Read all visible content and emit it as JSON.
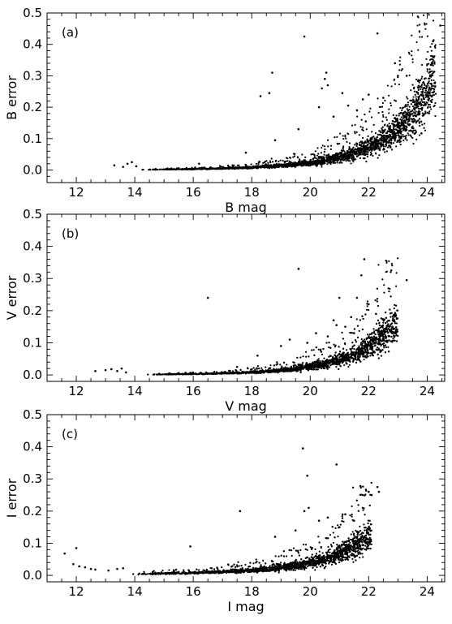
{
  "chart_data": [
    {
      "type": "scatter",
      "panel_label": "(a)",
      "xlabel": "B mag",
      "ylabel": "B error",
      "xlim": [
        11,
        24.6
      ],
      "ylim": [
        -0.04,
        0.5
      ],
      "xticks": [
        12,
        14,
        16,
        18,
        20,
        22,
        24
      ],
      "yticks": [
        0.0,
        0.1,
        0.2,
        0.3,
        0.4,
        0.5
      ],
      "xtick_labels": [
        "12",
        "14",
        "16",
        "18",
        "20",
        "22",
        "24"
      ],
      "ytick_labels": [
        "0.0",
        "0.1",
        "0.2",
        "0.3",
        "0.4",
        "0.5"
      ],
      "grid": false,
      "legend": "none",
      "point_color": "#000000",
      "trend_x": [
        14.2,
        15,
        16,
        17,
        18,
        19,
        20,
        20.5,
        21,
        21.5,
        22,
        22.3,
        22.6,
        22.9,
        23.2,
        23.5,
        23.8,
        24.1,
        24.3
      ],
      "trend_y": [
        0.001,
        0.002,
        0.003,
        0.005,
        0.008,
        0.014,
        0.023,
        0.031,
        0.041,
        0.055,
        0.073,
        0.088,
        0.104,
        0.123,
        0.146,
        0.175,
        0.215,
        0.27,
        0.34
      ],
      "outliers": [
        {
          "x": 13.3,
          "y": 0.015
        },
        {
          "x": 13.6,
          "y": 0.01
        },
        {
          "x": 13.75,
          "y": 0.02
        },
        {
          "x": 13.9,
          "y": 0.025
        },
        {
          "x": 14.05,
          "y": 0.012
        },
        {
          "x": 16.2,
          "y": 0.02
        },
        {
          "x": 17.8,
          "y": 0.055
        },
        {
          "x": 18.3,
          "y": 0.235
        },
        {
          "x": 18.6,
          "y": 0.245
        },
        {
          "x": 18.7,
          "y": 0.31
        },
        {
          "x": 18.8,
          "y": 0.095
        },
        {
          "x": 19.6,
          "y": 0.13
        },
        {
          "x": 19.8,
          "y": 0.425
        },
        {
          "x": 20.3,
          "y": 0.2
        },
        {
          "x": 20.4,
          "y": 0.26
        },
        {
          "x": 20.5,
          "y": 0.29
        },
        {
          "x": 20.55,
          "y": 0.31
        },
        {
          "x": 20.6,
          "y": 0.27
        },
        {
          "x": 20.8,
          "y": 0.17
        },
        {
          "x": 21.1,
          "y": 0.245
        },
        {
          "x": 21.3,
          "y": 0.205
        },
        {
          "x": 21.6,
          "y": 0.19
        },
        {
          "x": 21.8,
          "y": 0.225
        },
        {
          "x": 21.9,
          "y": 0.155
        },
        {
          "x": 22.0,
          "y": 0.24
        },
        {
          "x": 22.3,
          "y": 0.435
        },
        {
          "x": 22.5,
          "y": 0.23
        },
        {
          "x": 22.9,
          "y": 0.34
        },
        {
          "x": 23.0,
          "y": 0.3
        },
        {
          "x": 23.3,
          "y": 0.3
        },
        {
          "x": 24.2,
          "y": 0.41
        },
        {
          "x": 24.45,
          "y": 0.46
        }
      ]
    },
    {
      "type": "scatter",
      "panel_label": "(b)",
      "xlabel": "V mag",
      "ylabel": "V error",
      "xlim": [
        11,
        24.6
      ],
      "ylim": [
        -0.02,
        0.5
      ],
      "xticks": [
        12,
        14,
        16,
        18,
        20,
        22,
        24
      ],
      "yticks": [
        0.0,
        0.1,
        0.2,
        0.3,
        0.4,
        0.5
      ],
      "xtick_labels": [
        "12",
        "14",
        "16",
        "18",
        "20",
        "22",
        "24"
      ],
      "ytick_labels": [
        "0.0",
        "0.1",
        "0.2",
        "0.3",
        "0.4",
        "0.5"
      ],
      "grid": false,
      "legend": "none",
      "point_color": "#000000",
      "trend_x": [
        14.4,
        15,
        16,
        17,
        18,
        18.5,
        19,
        19.5,
        20,
        20.5,
        21,
        21.5,
        21.8,
        22.1,
        22.4,
        22.7,
        23.0
      ],
      "trend_y": [
        0.001,
        0.002,
        0.003,
        0.005,
        0.008,
        0.011,
        0.015,
        0.02,
        0.027,
        0.036,
        0.048,
        0.065,
        0.078,
        0.095,
        0.115,
        0.14,
        0.17
      ],
      "outliers": [
        {
          "x": 12.65,
          "y": 0.012
        },
        {
          "x": 13.0,
          "y": 0.015
        },
        {
          "x": 13.2,
          "y": 0.018
        },
        {
          "x": 13.4,
          "y": 0.012
        },
        {
          "x": 13.55,
          "y": 0.02
        },
        {
          "x": 13.7,
          "y": 0.008
        },
        {
          "x": 16.5,
          "y": 0.24
        },
        {
          "x": 17.5,
          "y": 0.025
        },
        {
          "x": 18.2,
          "y": 0.06
        },
        {
          "x": 19.0,
          "y": 0.09
        },
        {
          "x": 19.3,
          "y": 0.11
        },
        {
          "x": 19.6,
          "y": 0.33
        },
        {
          "x": 19.9,
          "y": 0.1
        },
        {
          "x": 20.2,
          "y": 0.13
        },
        {
          "x": 20.6,
          "y": 0.12
        },
        {
          "x": 20.8,
          "y": 0.17
        },
        {
          "x": 20.9,
          "y": 0.155
        },
        {
          "x": 21.0,
          "y": 0.24
        },
        {
          "x": 21.2,
          "y": 0.15
        },
        {
          "x": 21.4,
          "y": 0.18
        },
        {
          "x": 21.5,
          "y": 0.13
        },
        {
          "x": 21.6,
          "y": 0.24
        },
        {
          "x": 21.75,
          "y": 0.31
        },
        {
          "x": 21.85,
          "y": 0.36
        },
        {
          "x": 22.0,
          "y": 0.22
        },
        {
          "x": 22.25,
          "y": 0.19
        },
        {
          "x": 23.3,
          "y": 0.295
        }
      ]
    },
    {
      "type": "scatter",
      "panel_label": "(c)",
      "xlabel": "I mag",
      "ylabel": "I error",
      "xlim": [
        11,
        24.6
      ],
      "ylim": [
        -0.02,
        0.5
      ],
      "xticks": [
        12,
        14,
        16,
        18,
        20,
        22,
        24
      ],
      "yticks": [
        0.0,
        0.1,
        0.2,
        0.3,
        0.4,
        0.5
      ],
      "xtick_labels": [
        "12",
        "14",
        "16",
        "18",
        "20",
        "22",
        "24"
      ],
      "ytick_labels": [
        "0.0",
        "0.1",
        "0.2",
        "0.3",
        "0.4",
        "0.5"
      ],
      "grid": false,
      "legend": "none",
      "point_color": "#000000",
      "trend_x": [
        13.9,
        14.5,
        15,
        16,
        17,
        18,
        18.5,
        19,
        19.5,
        20,
        20.5,
        21,
        21.3,
        21.6,
        21.9,
        22.1
      ],
      "trend_y": [
        0.004,
        0.005,
        0.006,
        0.008,
        0.011,
        0.016,
        0.02,
        0.025,
        0.031,
        0.04,
        0.052,
        0.068,
        0.08,
        0.095,
        0.115,
        0.135
      ],
      "outliers": [
        {
          "x": 11.6,
          "y": 0.068
        },
        {
          "x": 11.9,
          "y": 0.035
        },
        {
          "x": 12.0,
          "y": 0.085
        },
        {
          "x": 12.1,
          "y": 0.028
        },
        {
          "x": 12.3,
          "y": 0.025
        },
        {
          "x": 12.5,
          "y": 0.02
        },
        {
          "x": 12.65,
          "y": 0.018
        },
        {
          "x": 13.1,
          "y": 0.015
        },
        {
          "x": 13.4,
          "y": 0.02
        },
        {
          "x": 13.6,
          "y": 0.022
        },
        {
          "x": 15.9,
          "y": 0.09
        },
        {
          "x": 17.6,
          "y": 0.2
        },
        {
          "x": 18.8,
          "y": 0.12
        },
        {
          "x": 19.5,
          "y": 0.14
        },
        {
          "x": 19.75,
          "y": 0.395
        },
        {
          "x": 19.9,
          "y": 0.31
        },
        {
          "x": 19.8,
          "y": 0.2
        },
        {
          "x": 19.95,
          "y": 0.21
        },
        {
          "x": 20.3,
          "y": 0.17
        },
        {
          "x": 20.6,
          "y": 0.18
        },
        {
          "x": 20.9,
          "y": 0.345
        },
        {
          "x": 21.0,
          "y": 0.15
        },
        {
          "x": 21.2,
          "y": 0.19
        },
        {
          "x": 21.5,
          "y": 0.17
        },
        {
          "x": 21.8,
          "y": 0.25
        },
        {
          "x": 22.0,
          "y": 0.26
        },
        {
          "x": 22.1,
          "y": 0.25
        },
        {
          "x": 22.3,
          "y": 0.275
        },
        {
          "x": 22.35,
          "y": 0.26
        }
      ]
    }
  ]
}
